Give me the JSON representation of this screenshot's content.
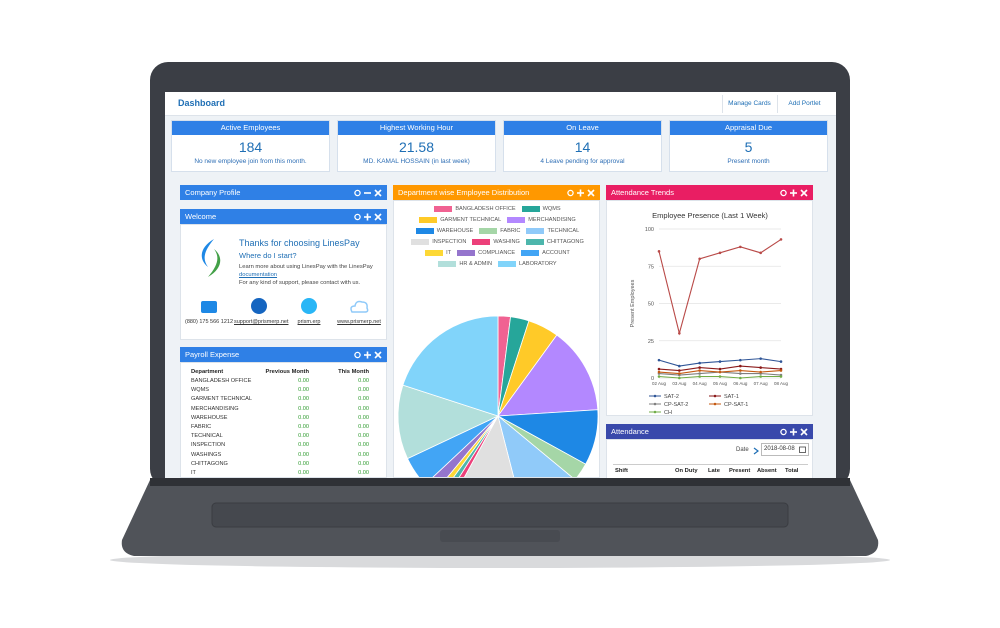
{
  "header": {
    "title": "Dashboard",
    "buttons": [
      "Manage Cards",
      "Add Portlet"
    ]
  },
  "cards": [
    {
      "title": "Active Employees",
      "value": 184,
      "note": "No new employee join from this month."
    },
    {
      "title": "Highest Working Hour",
      "value": 21.58,
      "note": "MD. KAMAL HOSSAIN (in last week)"
    },
    {
      "title": "On Leave",
      "value": 14,
      "note": "4 Leave pending for approval"
    },
    {
      "title": "Appraisal Due",
      "value": 5,
      "note": "Present month"
    }
  ],
  "company_profile": {
    "title": "Company Profile"
  },
  "welcome": {
    "title": "Welcome",
    "heading": "Thanks for choosing LinesPay",
    "subheading": "Where do I start?",
    "learn_text": "Learn more about using LinesPay with the LinesPay",
    "learn_link": "documentation",
    "support_text": "For any kind of support, please contact with us.",
    "contacts": [
      "(880) 175 566 1212",
      "support@prismerp.net",
      "prism.erp",
      "www.prismerp.net"
    ]
  },
  "payroll": {
    "title": "Payroll Expense",
    "columns": [
      "Department",
      "Previous Month",
      "This Month"
    ],
    "rows": [
      [
        "BANGLADESH OFFICE",
        "0.00",
        "0.00"
      ],
      [
        "WQMS",
        "0.00",
        "0.00"
      ],
      [
        "GARMENT TECHNICAL",
        "0.00",
        "0.00"
      ],
      [
        "MERCHANDISING",
        "0.00",
        "0.00"
      ],
      [
        "WAREHOUSE",
        "0.00",
        "0.00"
      ],
      [
        "FABRIC",
        "0.00",
        "0.00"
      ],
      [
        "TECHNICAL",
        "0.00",
        "0.00"
      ],
      [
        "INSPECTION",
        "0.00",
        "0.00"
      ],
      [
        "WASHINGS",
        "0.00",
        "0.00"
      ],
      [
        "CHITTAGONG",
        "0.00",
        "0.00"
      ],
      [
        "IT",
        "0.00",
        "0.00"
      ]
    ]
  },
  "department_panel": {
    "title": "Department wise Employee Distribution"
  },
  "trends_panel": {
    "title": "Attendance Trends"
  },
  "attendance": {
    "title": "Attendance",
    "date_label": "Date",
    "date": "2018-08-08",
    "columns": [
      "Shift",
      "On Duty",
      "Late",
      "Present",
      "Absent",
      "Total"
    ]
  },
  "chart_data": [
    {
      "type": "pie",
      "categories": [
        "BANGLADESH OFFICE",
        "WQMS",
        "GARMENT TECHNICAL",
        "MERCHANDISING",
        "WAREHOUSE",
        "FABRIC",
        "TECHNICAL",
        "INSPECTION",
        "WASHING",
        "CHITTAGONG",
        "IT",
        "COMPLIANCE",
        "ACCOUNT",
        "HR & ADMIN",
        "LABORATORY"
      ],
      "values": [
        2,
        3,
        5,
        14,
        9,
        3,
        10,
        12,
        1,
        1,
        1,
        2,
        5,
        12,
        20
      ],
      "colors": [
        "#f06292",
        "#26a69a",
        "#ffca28",
        "#b388ff",
        "#1e88e5",
        "#a5d6a7",
        "#90caf9",
        "#e0e0e0",
        "#ec407a",
        "#4db6ac",
        "#fdd835",
        "#9575cd",
        "#42a5f5",
        "#b2dfdb",
        "#81d4fa"
      ]
    },
    {
      "type": "line",
      "title": "Employee Presence (Last 1 Week)",
      "y_label": "Present Employees",
      "categories": [
        "02 Aug",
        "03 Aug",
        "04 Aug",
        "05 Aug",
        "06 Aug",
        "07 Aug",
        "08 Aug"
      ],
      "ylim": [
        0,
        100
      ],
      "yticks": [
        0,
        25,
        50,
        75,
        100
      ],
      "grid": true,
      "series": [
        {
          "color": "#b94a48",
          "values": [
            85,
            30,
            80,
            84,
            88,
            84,
            93
          ]
        },
        {
          "name": "SAT-2",
          "color": "#2f5597",
          "values": [
            12,
            8,
            10,
            11,
            12,
            13,
            11
          ]
        },
        {
          "name": "SAT-1",
          "color": "#8b1a1a",
          "values": [
            6,
            5,
            7,
            6,
            8,
            7,
            6
          ]
        },
        {
          "name": "CP-SAT-2",
          "color": "#7f7f7f",
          "values": [
            3,
            2,
            3,
            4,
            3,
            3,
            2
          ]
        },
        {
          "name": "CP-SAT-1",
          "color": "#c55a11",
          "values": [
            4,
            3,
            5,
            4,
            5,
            4,
            5
          ]
        },
        {
          "name": "CH",
          "color": "#70ad47",
          "values": [
            1,
            0,
            1,
            1,
            0,
            1,
            1
          ]
        }
      ]
    }
  ]
}
